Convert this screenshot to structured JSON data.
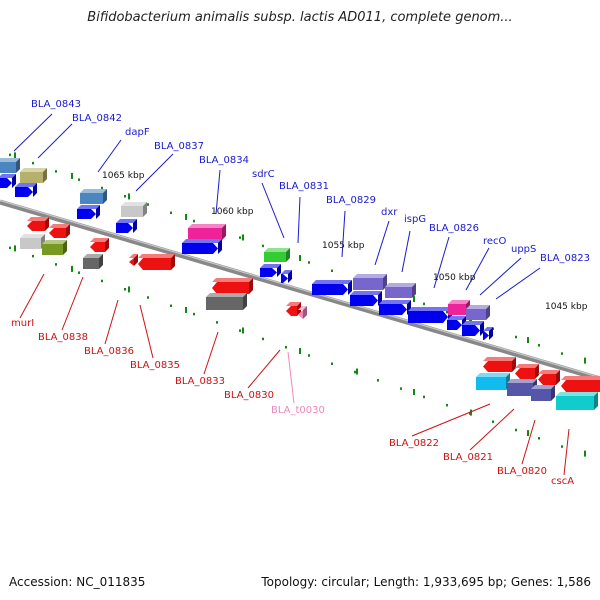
{
  "title": "Bifidobacterium animalis subsp. lactis AD011, complete genom...",
  "footer": {
    "accession": "Accession: NC_011835",
    "topology": "Topology: circular; Length: 1,933,695 bp; Genes: 1,586"
  },
  "colors": {
    "forward_label": "#1a1acc",
    "reverse_label": "#cc1111",
    "trna_label": "#ee88bb",
    "backbone": "#888888",
    "tick": "#118811"
  },
  "kbp_marks": [
    "1065 kbp",
    "1060 kbp",
    "1055 kbp",
    "1050 kbp",
    "1045 kbp"
  ],
  "forward_labels": [
    "BLA_0843",
    "BLA_0842",
    "dapF",
    "BLA_0837",
    "BLA_0834",
    "sdrC",
    "BLA_0831",
    "BLA_0829",
    "dxr",
    "ispG",
    "BLA_0826",
    "recO",
    "uppS",
    "BLA_0823"
  ],
  "reverse_labels": [
    "murI",
    "BLA_0838",
    "BLA_0836",
    "BLA_0835",
    "BLA_0833",
    "BLA_0830",
    "BLA_t0030",
    "BLA_0822",
    "BLA_0821",
    "BLA_0820",
    "cscA"
  ],
  "genes": [
    {
      "name": "BLA_0843",
      "strand": "+",
      "color": "#4b86c0"
    },
    {
      "name": "BLA_0842",
      "strand": "+",
      "color": "#b5b06a"
    },
    {
      "name": "dapF",
      "strand": "+",
      "color": "#4b86c0"
    },
    {
      "name": "BLA_0837",
      "strand": "+",
      "color": "#c8c8c8"
    },
    {
      "name": "BLA_0834",
      "strand": "+",
      "color": "#ee2299"
    },
    {
      "name": "sdrC",
      "strand": "+",
      "color": "#33cc33"
    },
    {
      "name": "BLA_0829",
      "strand": "+",
      "color": "#7766cc"
    },
    {
      "name": "ispG",
      "strand": "+",
      "color": "#7766cc"
    },
    {
      "name": "BLA_0826",
      "strand": "+",
      "color": "#ee2299"
    },
    {
      "name": "recO",
      "strand": "+",
      "color": "#7766cc"
    },
    {
      "name": "BLA_0822",
      "strand": "-",
      "color": "#11bbee"
    },
    {
      "name": "BLA_0821",
      "strand": "-",
      "color": "#5555aa"
    },
    {
      "name": "cscA",
      "strand": "-",
      "color": "#11cccc"
    },
    {
      "name": "BLA_0838",
      "strand": "-",
      "color": "#c8c8c8"
    },
    {
      "name": "murI",
      "strand": "-",
      "color": "#779922"
    },
    {
      "name": "BLA_0836",
      "strand": "-",
      "color": "#666666"
    },
    {
      "name": "BLA_0833",
      "strand": "-",
      "color": "#666666"
    }
  ]
}
